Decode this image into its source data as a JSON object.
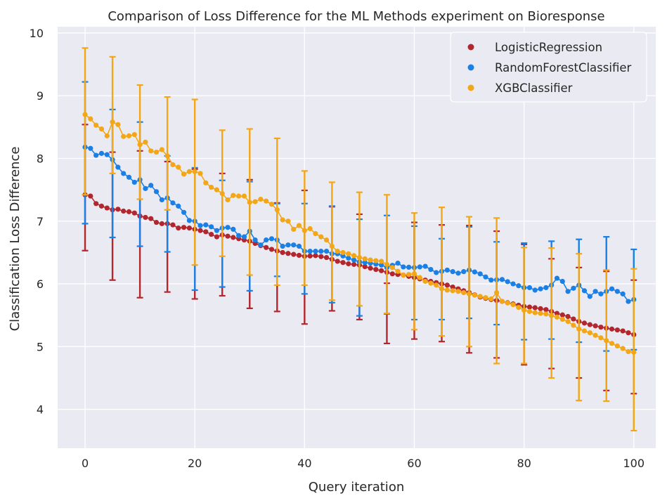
{
  "chart_data": {
    "type": "scatter",
    "title": "Comparison of Loss Difference for the ML Methods experiment on Bioresponse",
    "xlabel": "Query iteration",
    "ylabel": "Classification Loss Difference",
    "xlim": [
      -5,
      104
    ],
    "ylim": [
      3.38,
      10.1
    ],
    "xticks": [
      0,
      20,
      40,
      60,
      80,
      100
    ],
    "yticks": [
      4,
      5,
      6,
      7,
      8,
      9,
      10
    ],
    "grid": true,
    "background": "#eaeaf2",
    "legend_position": "top-right",
    "series": [
      {
        "name": "LogisticRegression",
        "color": "#b2272d",
        "anchors": [
          [
            0,
            7.42
          ],
          [
            1,
            7.4
          ],
          [
            2,
            7.28
          ],
          [
            3,
            7.24
          ],
          [
            4,
            7.21
          ],
          [
            5,
            7.18
          ],
          [
            6,
            7.19
          ],
          [
            7,
            7.16
          ],
          [
            8,
            7.15
          ],
          [
            9,
            7.13
          ],
          [
            10,
            7.08
          ],
          [
            11,
            7.06
          ],
          [
            12,
            7.04
          ],
          [
            13,
            6.98
          ],
          [
            14,
            6.96
          ],
          [
            15,
            6.96
          ],
          [
            16,
            6.94
          ],
          [
            17,
            6.89
          ],
          [
            18,
            6.9
          ],
          [
            19,
            6.89
          ],
          [
            20,
            6.87
          ],
          [
            22,
            6.83
          ],
          [
            24,
            6.75
          ],
          [
            25,
            6.78
          ],
          [
            27,
            6.74
          ],
          [
            30,
            6.68
          ],
          [
            32,
            6.61
          ],
          [
            34,
            6.55
          ],
          [
            36,
            6.5
          ],
          [
            38,
            6.47
          ],
          [
            40,
            6.44
          ],
          [
            42,
            6.45
          ],
          [
            44,
            6.42
          ],
          [
            46,
            6.36
          ],
          [
            48,
            6.32
          ],
          [
            50,
            6.3
          ],
          [
            52,
            6.25
          ],
          [
            54,
            6.21
          ],
          [
            56,
            6.16
          ],
          [
            58,
            6.14
          ],
          [
            60,
            6.1
          ],
          [
            62,
            6.06
          ],
          [
            64,
            6.02
          ],
          [
            66,
            5.98
          ],
          [
            68,
            5.92
          ],
          [
            70,
            5.86
          ],
          [
            72,
            5.79
          ],
          [
            74,
            5.75
          ],
          [
            76,
            5.72
          ],
          [
            78,
            5.68
          ],
          [
            80,
            5.64
          ],
          [
            82,
            5.62
          ],
          [
            84,
            5.59
          ],
          [
            86,
            5.53
          ],
          [
            88,
            5.48
          ],
          [
            90,
            5.4
          ],
          [
            92,
            5.35
          ],
          [
            94,
            5.31
          ],
          [
            96,
            5.28
          ],
          [
            98,
            5.25
          ],
          [
            100,
            5.19
          ]
        ],
        "errorbars": [
          [
            0,
            6.53,
            8.54
          ],
          [
            5,
            6.06,
            8.1
          ],
          [
            10,
            5.78,
            8.12
          ],
          [
            15,
            5.87,
            7.95
          ],
          [
            20,
            5.76,
            7.83
          ],
          [
            25,
            5.81,
            7.76
          ],
          [
            30,
            5.61,
            7.66
          ],
          [
            35,
            5.56,
            7.29
          ],
          [
            40,
            5.36,
            7.49
          ],
          [
            45,
            5.57,
            7.23
          ],
          [
            50,
            5.43,
            7.11
          ],
          [
            55,
            5.05,
            6.01
          ],
          [
            60,
            5.12,
            6.98
          ],
          [
            65,
            5.08,
            6.94
          ],
          [
            70,
            4.9,
            6.93
          ],
          [
            75,
            4.82,
            6.84
          ],
          [
            80,
            4.71,
            6.63
          ],
          [
            85,
            4.65,
            6.4
          ],
          [
            90,
            4.5,
            6.26
          ],
          [
            95,
            4.3,
            6.2
          ],
          [
            100,
            4.25,
            6.06
          ]
        ]
      },
      {
        "name": "RandomForestClassifier",
        "color": "#1a80e5",
        "anchors": [
          [
            0,
            8.18
          ],
          [
            1,
            8.16
          ],
          [
            2,
            8.05
          ],
          [
            3,
            8.08
          ],
          [
            4,
            8.06
          ],
          [
            5,
            7.98
          ],
          [
            6,
            7.86
          ],
          [
            7,
            7.76
          ],
          [
            8,
            7.7
          ],
          [
            9,
            7.62
          ],
          [
            10,
            7.66
          ],
          [
            11,
            7.52
          ],
          [
            12,
            7.57
          ],
          [
            13,
            7.47
          ],
          [
            14,
            7.34
          ],
          [
            15,
            7.37
          ],
          [
            16,
            7.29
          ],
          [
            17,
            7.24
          ],
          [
            18,
            7.14
          ],
          [
            19,
            7.01
          ],
          [
            20,
            7.0
          ],
          [
            21,
            6.93
          ],
          [
            22,
            6.94
          ],
          [
            23,
            6.91
          ],
          [
            24,
            6.85
          ],
          [
            25,
            6.89
          ],
          [
            26,
            6.9
          ],
          [
            27,
            6.87
          ],
          [
            28,
            6.77
          ],
          [
            29,
            6.75
          ],
          [
            30,
            6.84
          ],
          [
            31,
            6.7
          ],
          [
            32,
            6.62
          ],
          [
            33,
            6.7
          ],
          [
            34,
            6.72
          ],
          [
            35,
            6.7
          ],
          [
            36,
            6.6
          ],
          [
            37,
            6.62
          ],
          [
            38,
            6.62
          ],
          [
            39,
            6.6
          ],
          [
            40,
            6.52
          ],
          [
            42,
            6.52
          ],
          [
            44,
            6.52
          ],
          [
            45,
            6.48
          ],
          [
            46,
            6.48
          ],
          [
            48,
            6.41
          ],
          [
            50,
            6.35
          ],
          [
            52,
            6.33
          ],
          [
            54,
            6.3
          ],
          [
            55,
            6.26
          ],
          [
            57,
            6.33
          ],
          [
            58,
            6.27
          ],
          [
            60,
            6.26
          ],
          [
            62,
            6.28
          ],
          [
            64,
            6.18
          ],
          [
            66,
            6.22
          ],
          [
            68,
            6.17
          ],
          [
            70,
            6.22
          ],
          [
            72,
            6.16
          ],
          [
            74,
            6.06
          ],
          [
            76,
            6.07
          ],
          [
            78,
            6.0
          ],
          [
            80,
            5.94
          ],
          [
            81,
            5.94
          ],
          [
            82,
            5.9
          ],
          [
            84,
            5.94
          ],
          [
            85,
            5.98
          ],
          [
            86,
            6.09
          ],
          [
            87,
            6.04
          ],
          [
            88,
            5.88
          ],
          [
            90,
            5.98
          ],
          [
            92,
            5.8
          ],
          [
            93,
            5.88
          ],
          [
            94,
            5.84
          ],
          [
            96,
            5.92
          ],
          [
            98,
            5.84
          ],
          [
            99,
            5.72
          ],
          [
            100,
            5.75
          ]
        ],
        "errorbars": [
          [
            0,
            6.96,
            9.22
          ],
          [
            5,
            6.74,
            8.78
          ],
          [
            10,
            6.6,
            8.58
          ],
          [
            15,
            6.51,
            8.04
          ],
          [
            20,
            5.9,
            7.85
          ],
          [
            25,
            5.95,
            7.65
          ],
          [
            30,
            5.89,
            7.63
          ],
          [
            35,
            6.12,
            7.28
          ],
          [
            40,
            5.84,
            7.28
          ],
          [
            45,
            5.7,
            7.24
          ],
          [
            50,
            5.49,
            7.03
          ],
          [
            55,
            5.52,
            7.09
          ],
          [
            60,
            5.43,
            6.92
          ],
          [
            65,
            5.43,
            6.72
          ],
          [
            70,
            5.45,
            6.91
          ],
          [
            75,
            5.35,
            6.67
          ],
          [
            80,
            5.11,
            6.65
          ],
          [
            85,
            5.12,
            6.68
          ],
          [
            90,
            5.07,
            6.71
          ],
          [
            95,
            4.93,
            6.75
          ],
          [
            100,
            4.95,
            6.55
          ]
        ]
      },
      {
        "name": "XGBClassifier",
        "color": "#f3a716",
        "anchors": [
          [
            0,
            8.7
          ],
          [
            1,
            8.63
          ],
          [
            2,
            8.53
          ],
          [
            3,
            8.47
          ],
          [
            4,
            8.36
          ],
          [
            5,
            8.58
          ],
          [
            6,
            8.54
          ],
          [
            7,
            8.35
          ],
          [
            8,
            8.36
          ],
          [
            9,
            8.38
          ],
          [
            10,
            8.22
          ],
          [
            11,
            8.26
          ],
          [
            12,
            8.12
          ],
          [
            13,
            8.1
          ],
          [
            14,
            8.14
          ],
          [
            15,
            8.04
          ],
          [
            16,
            7.9
          ],
          [
            17,
            7.86
          ],
          [
            18,
            7.75
          ],
          [
            19,
            7.79
          ],
          [
            20,
            7.79
          ],
          [
            21,
            7.76
          ],
          [
            22,
            7.61
          ],
          [
            23,
            7.54
          ],
          [
            24,
            7.5
          ],
          [
            25,
            7.44
          ],
          [
            26,
            7.34
          ],
          [
            27,
            7.41
          ],
          [
            28,
            7.4
          ],
          [
            29,
            7.4
          ],
          [
            30,
            7.3
          ],
          [
            31,
            7.31
          ],
          [
            32,
            7.35
          ],
          [
            33,
            7.32
          ],
          [
            34,
            7.27
          ],
          [
            35,
            7.18
          ],
          [
            36,
            7.02
          ],
          [
            37,
            7.0
          ],
          [
            38,
            6.87
          ],
          [
            39,
            6.93
          ],
          [
            40,
            6.85
          ],
          [
            41,
            6.88
          ],
          [
            42,
            6.8
          ],
          [
            43,
            6.75
          ],
          [
            44,
            6.7
          ],
          [
            45,
            6.6
          ],
          [
            46,
            6.52
          ],
          [
            48,
            6.48
          ],
          [
            50,
            6.42
          ],
          [
            52,
            6.38
          ],
          [
            54,
            6.36
          ],
          [
            56,
            6.26
          ],
          [
            58,
            6.14
          ],
          [
            60,
            6.16
          ],
          [
            62,
            6.04
          ],
          [
            64,
            5.98
          ],
          [
            65,
            5.92
          ],
          [
            66,
            5.9
          ],
          [
            68,
            5.88
          ],
          [
            70,
            5.84
          ],
          [
            72,
            5.8
          ],
          [
            74,
            5.76
          ],
          [
            75,
            5.86
          ],
          [
            76,
            5.72
          ],
          [
            78,
            5.67
          ],
          [
            80,
            5.58
          ],
          [
            82,
            5.54
          ],
          [
            84,
            5.52
          ],
          [
            86,
            5.47
          ],
          [
            88,
            5.4
          ],
          [
            90,
            5.28
          ],
          [
            92,
            5.22
          ],
          [
            94,
            5.14
          ],
          [
            96,
            5.05
          ],
          [
            98,
            4.97
          ],
          [
            99,
            4.92
          ],
          [
            100,
            4.91
          ]
        ],
        "errorbars": [
          [
            0,
            7.42,
            9.76
          ],
          [
            5,
            7.76,
            9.62
          ],
          [
            10,
            7.35,
            9.17
          ],
          [
            15,
            7.18,
            8.98
          ],
          [
            20,
            6.3,
            8.94
          ],
          [
            25,
            6.44,
            8.45
          ],
          [
            30,
            6.14,
            8.47
          ],
          [
            35,
            5.98,
            8.32
          ],
          [
            40,
            5.98,
            7.8
          ],
          [
            45,
            5.74,
            7.62
          ],
          [
            50,
            5.65,
            7.46
          ],
          [
            55,
            5.53,
            7.42
          ],
          [
            60,
            5.27,
            7.13
          ],
          [
            65,
            5.17,
            7.22
          ],
          [
            70,
            5.0,
            7.07
          ],
          [
            75,
            4.73,
            7.05
          ],
          [
            80,
            4.73,
            6.58
          ],
          [
            85,
            4.5,
            6.57
          ],
          [
            90,
            4.14,
            6.48
          ],
          [
            95,
            4.13,
            6.22
          ],
          [
            100,
            3.66,
            6.24
          ]
        ]
      }
    ]
  }
}
